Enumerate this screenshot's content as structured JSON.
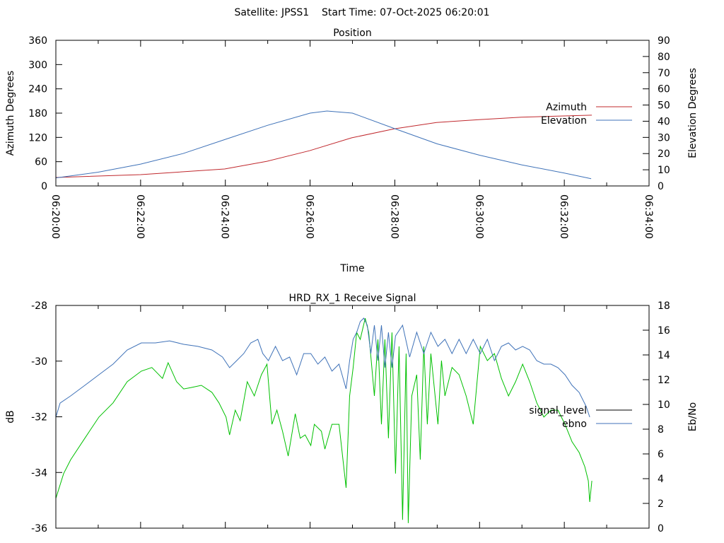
{
  "header": {
    "title": "Satellite: JPSS1    Start Time: 07-Oct-2025 06:20:01"
  },
  "chart_data": [
    {
      "type": "line",
      "title": "Position",
      "xlabel": "Time",
      "ylabel": "Azimuth Degrees",
      "y2label": "Elevation Degrees",
      "x_units": "seconds since 06:20:00",
      "xlim": [
        0,
        840
      ],
      "ylim": [
        0,
        360
      ],
      "y2lim": [
        0,
        90
      ],
      "xticks": [
        0,
        120,
        240,
        360,
        480,
        600,
        720,
        840
      ],
      "xtick_labels": [
        "06:20:00",
        "06:22:00",
        "06:24:00",
        "06:26:00",
        "06:28:00",
        "06:30:00",
        "06:32:00",
        "06:34:00"
      ],
      "yticks": [
        "0",
        "60",
        "120",
        "180",
        "240",
        "300",
        "360"
      ],
      "y2ticks": [
        "0",
        "10",
        "20",
        "30",
        "40",
        "50",
        "60",
        "70",
        "80",
        "90"
      ],
      "grid": false,
      "legend": "right",
      "series": [
        {
          "name": "Azimuth",
          "axis": "y",
          "color": "#c0282d",
          "x": [
            0,
            120,
            239,
            299,
            359,
            419,
            479,
            539,
            599,
            659,
            719,
            759
          ],
          "y": [
            21,
            28,
            42,
            61,
            87,
            119,
            141,
            157,
            164,
            170,
            173,
            175
          ]
        },
        {
          "name": "Elevation",
          "axis": "y2",
          "color": "#3f72b8",
          "x": [
            0,
            60,
            120,
            180,
            240,
            300,
            360,
            384,
            420,
            480,
            540,
            600,
            660,
            720,
            758
          ],
          "y": [
            5,
            8.5,
            13.5,
            20,
            28.8,
            37.5,
            45,
            46.3,
            45,
            35.4,
            26,
            19,
            13,
            8,
            4.5
          ]
        }
      ]
    },
    {
      "type": "line",
      "title": "HRD_RX_1 Receive Signal",
      "xlabel": "",
      "ylabel": "dB",
      "y2label": "Eb/No",
      "x_units": "seconds since 06:20:00",
      "xlim": [
        0,
        840
      ],
      "ylim": [
        -36,
        -28
      ],
      "y2lim": [
        0,
        18
      ],
      "yticks": [
        "-36",
        "-34",
        "-32",
        "-30",
        "-28"
      ],
      "y2ticks": [
        "0",
        "2",
        "4",
        "6",
        "8",
        "10",
        "12",
        "14",
        "16",
        "18"
      ],
      "grid": false,
      "legend": "right",
      "series": [
        {
          "name": "signal_level",
          "axis": "y",
          "color": "#00c000",
          "legend_color": "#000000",
          "x": [
            0,
            11,
            21,
            41,
            61,
            81,
            101,
            121,
            136,
            151,
            159,
            171,
            181,
            191,
            206,
            221,
            231,
            241,
            246,
            254,
            261,
            271,
            281,
            291,
            299,
            306,
            313,
            321,
            329,
            339,
            346,
            353,
            361,
            366,
            376,
            381,
            391,
            401,
            411,
            416,
            421,
            426,
            431,
            438,
            443,
            451,
            456,
            461,
            466,
            471,
            476,
            481,
            486,
            491,
            496,
            499,
            504,
            511,
            516,
            521,
            526,
            531,
            541,
            546,
            551,
            561,
            571,
            581,
            591,
            601,
            611,
            621,
            631,
            641,
            651,
            661,
            671,
            681,
            691,
            701,
            711,
            721,
            731,
            741,
            749,
            754,
            756,
            759
          ],
          "y": [
            -34.93,
            -34.04,
            -33.54,
            -32.77,
            -32.01,
            -31.5,
            -30.74,
            -30.36,
            -30.23,
            -30.62,
            -30.06,
            -30.74,
            -31.0,
            -30.95,
            -30.87,
            -31.12,
            -31.5,
            -32.01,
            -32.65,
            -31.76,
            -32.14,
            -30.74,
            -31.25,
            -30.49,
            -30.11,
            -32.27,
            -31.76,
            -32.52,
            -33.41,
            -31.89,
            -32.77,
            -32.65,
            -33.03,
            -32.27,
            -32.52,
            -33.16,
            -32.27,
            -32.27,
            -34.55,
            -31.25,
            -30.23,
            -28.97,
            -29.22,
            -28.46,
            -28.97,
            -31.25,
            -29.22,
            -32.27,
            -29.22,
            -32.77,
            -28.97,
            -34.04,
            -29.47,
            -35.7,
            -29.73,
            -35.82,
            -31.25,
            -30.49,
            -33.54,
            -29.47,
            -32.27,
            -29.73,
            -32.27,
            -29.98,
            -31.25,
            -30.23,
            -30.49,
            -31.25,
            -32.27,
            -29.47,
            -29.98,
            -29.73,
            -30.62,
            -31.25,
            -30.74,
            -30.11,
            -30.74,
            -31.5,
            -32.01,
            -31.76,
            -31.76,
            -32.27,
            -32.9,
            -33.28,
            -33.79,
            -34.3,
            -35.06,
            -34.3
          ]
        },
        {
          "name": "ebno",
          "axis": "y2",
          "color": "#3f72b8",
          "x": [
            0,
            6,
            21,
            41,
            61,
            81,
            101,
            121,
            141,
            161,
            181,
            201,
            221,
            236,
            246,
            256,
            266,
            276,
            286,
            293,
            301,
            311,
            321,
            331,
            341,
            351,
            361,
            371,
            381,
            391,
            401,
            411,
            416,
            421,
            426,
            431,
            436,
            441,
            446,
            451,
            456,
            461,
            466,
            471,
            476,
            481,
            491,
            501,
            511,
            521,
            531,
            541,
            551,
            561,
            571,
            581,
            591,
            601,
            611,
            621,
            631,
            641,
            651,
            661,
            671,
            681,
            691,
            701,
            711,
            721,
            731,
            741,
            751,
            756
          ],
          "y": [
            8.97,
            10.11,
            10.69,
            11.54,
            12.4,
            13.26,
            14.4,
            14.97,
            14.97,
            15.14,
            14.86,
            14.69,
            14.4,
            13.83,
            12.97,
            13.54,
            14.11,
            14.97,
            15.26,
            14.11,
            13.54,
            14.69,
            13.54,
            13.83,
            12.4,
            14.11,
            14.11,
            13.26,
            13.83,
            12.69,
            13.26,
            11.26,
            13.54,
            15.26,
            15.83,
            16.69,
            16.97,
            16.4,
            14.11,
            16.4,
            13.54,
            16.4,
            12.97,
            15.83,
            12.97,
            15.54,
            16.4,
            13.83,
            15.83,
            14.11,
            15.83,
            14.69,
            15.26,
            14.11,
            15.26,
            14.11,
            15.26,
            14.11,
            15.26,
            13.54,
            14.69,
            14.97,
            14.4,
            14.69,
            14.4,
            13.54,
            13.26,
            13.26,
            12.97,
            12.4,
            11.54,
            10.97,
            9.83,
            8.97
          ]
        }
      ]
    }
  ]
}
